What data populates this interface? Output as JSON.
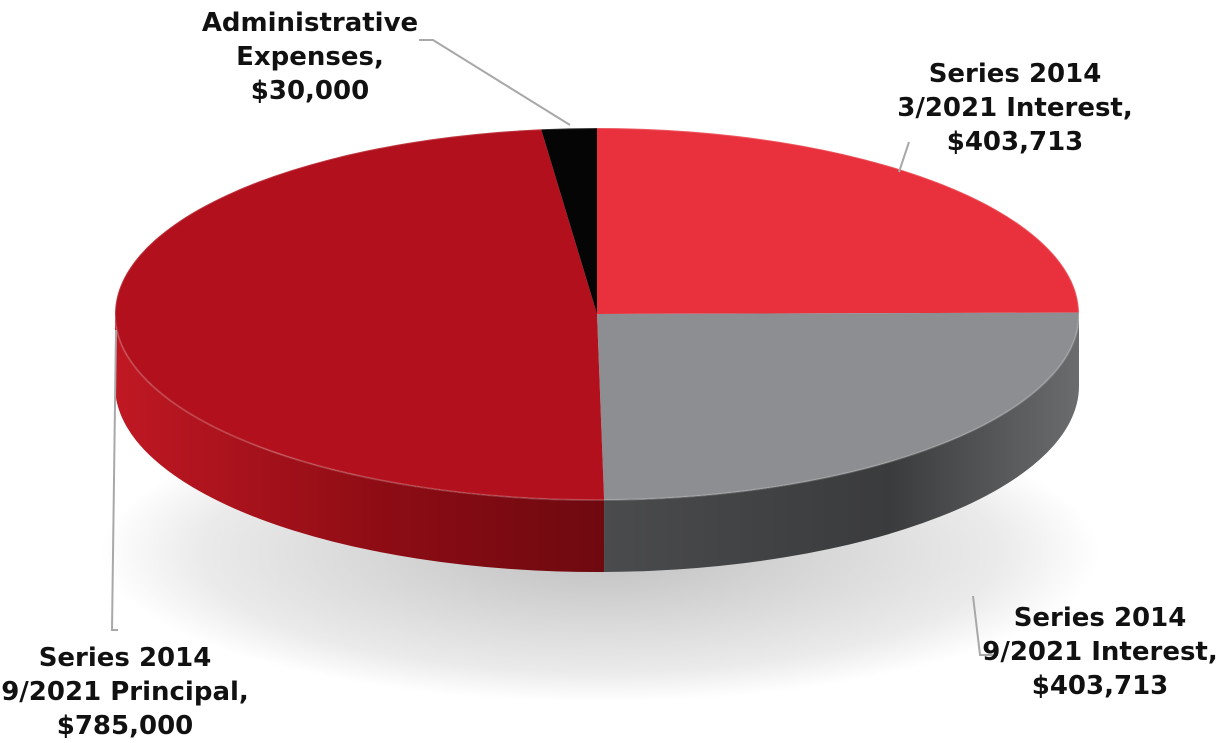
{
  "chart_data": {
    "type": "pie",
    "style": "3d",
    "title": "",
    "slices": [
      {
        "label_lines": [
          "Series 2014",
          "3/2021 Interest,",
          "$403,713"
        ],
        "name": "Series 2014 3/2021 Interest",
        "value": 403713,
        "color": "#e8313c"
      },
      {
        "label_lines": [
          "Series 2014",
          "9/2021 Interest,",
          "$403,713"
        ],
        "name": "Series 2014 9/2021 Interest",
        "value": 403713,
        "color": "#8c8e91"
      },
      {
        "label_lines": [
          "Series 2014",
          "9/2021 Principal,",
          "$785,000"
        ],
        "name": "Series 2014 9/2021 Principal",
        "value": 785000,
        "color": "#b1101c"
      },
      {
        "label_lines": [
          "Administrative",
          "Expenses,",
          "$30,000"
        ],
        "name": "Administrative Expenses",
        "value": 30000,
        "color": "#050505"
      }
    ],
    "legend": "none",
    "labels": "outside with leader lines"
  }
}
